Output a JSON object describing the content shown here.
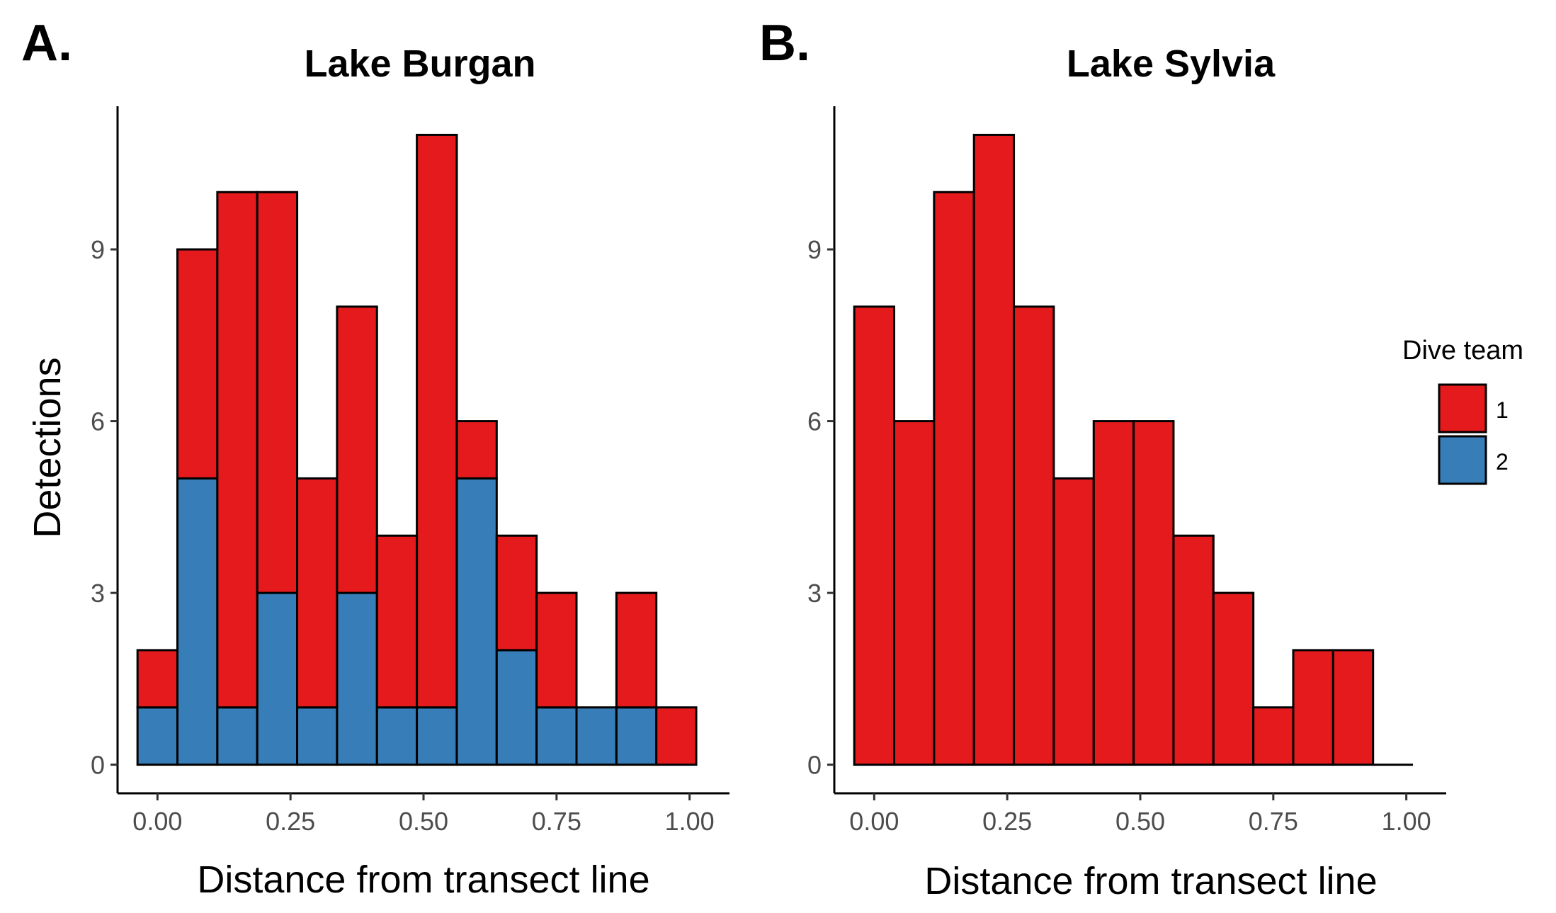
{
  "colors": {
    "team1": "#E41A1C",
    "team2": "#377EB8"
  },
  "ylabel": "Detections",
  "legend": {
    "title": "Dive team",
    "entries": [
      {
        "label": "1",
        "color": "#E41A1C"
      },
      {
        "label": "2",
        "color": "#377EB8"
      }
    ]
  },
  "chart_data": [
    {
      "type": "bar",
      "stacked": true,
      "panel_label": "A.",
      "title": "Lake Burgan",
      "xlabel": "Distance from transect line",
      "ylabel": "Detections",
      "x_ticks": [
        "0.00",
        "0.25",
        "0.50",
        "0.75",
        "1.00"
      ],
      "x_tick_values": [
        0,
        0.25,
        0.5,
        0.75,
        1.0
      ],
      "y_ticks": [
        "0",
        "3",
        "6",
        "9"
      ],
      "y_tick_values": [
        0,
        3,
        6,
        9
      ],
      "xlim": [
        -0.075,
        1.075
      ],
      "ylim": [
        -0.5,
        11.5
      ],
      "bin_width": 0.075,
      "bin_centers": [
        0.0,
        0.075,
        0.15,
        0.225,
        0.3,
        0.375,
        0.45,
        0.525,
        0.6,
        0.675,
        0.75,
        0.825,
        0.9,
        0.975
      ],
      "series": [
        {
          "name": "2",
          "color": "#377EB8",
          "values": [
            1,
            5,
            1,
            3,
            1,
            3,
            1,
            1,
            5,
            2,
            1,
            1,
            1,
            0
          ]
        },
        {
          "name": "1",
          "color": "#E41A1C",
          "values": [
            1,
            4,
            9,
            7,
            4,
            5,
            3,
            10,
            1,
            2,
            2,
            0,
            2,
            1
          ]
        }
      ],
      "grid": false,
      "legend_position": "none"
    },
    {
      "type": "bar",
      "stacked": true,
      "panel_label": "B.",
      "title": "Lake Sylvia",
      "xlabel": "Distance from transect line",
      "ylabel": "",
      "x_ticks": [
        "0.00",
        "0.25",
        "0.50",
        "0.75",
        "1.00"
      ],
      "x_tick_values": [
        0,
        0.25,
        0.5,
        0.75,
        1.0
      ],
      "y_ticks": [
        "0",
        "3",
        "6",
        "9"
      ],
      "y_tick_values": [
        0,
        3,
        6,
        9
      ],
      "xlim": [
        -0.075,
        1.075
      ],
      "ylim": [
        -0.5,
        11.5
      ],
      "bin_width": 0.075,
      "bin_centers": [
        0.0,
        0.075,
        0.15,
        0.225,
        0.3,
        0.375,
        0.45,
        0.525,
        0.6,
        0.675,
        0.75,
        0.825,
        0.9,
        0.975
      ],
      "series": [
        {
          "name": "2",
          "color": "#377EB8",
          "values": [
            0,
            0,
            0,
            0,
            0,
            0,
            0,
            0,
            0,
            0,
            0,
            0,
            0,
            0
          ]
        },
        {
          "name": "1",
          "color": "#E41A1C",
          "values": [
            8,
            6,
            10,
            11,
            8,
            5,
            6,
            6,
            4,
            3,
            1,
            2,
            2,
            0
          ]
        }
      ],
      "grid": false,
      "legend_position": "right"
    }
  ]
}
